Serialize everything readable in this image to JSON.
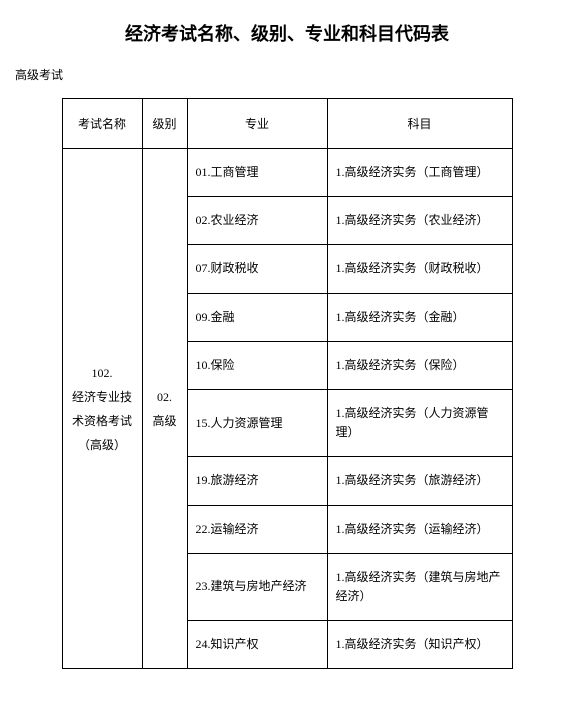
{
  "title": "经济考试名称、级别、专业和科目代码表",
  "subtitle": "高级考试",
  "headers": {
    "exam_name": "考试名称",
    "level": "级别",
    "major": "专业",
    "subject": "科目"
  },
  "exam_name": "102.\n经济专业技术资格考试（高级）",
  "level": "02.\n高级",
  "rows": [
    {
      "major": "01.工商管理",
      "subject": "1.高级经济实务（工商管理）"
    },
    {
      "major": "02.农业经济",
      "subject": "1.高级经济实务（农业经济）"
    },
    {
      "major": "07.财政税收",
      "subject": "1.高级经济实务（财政税收）"
    },
    {
      "major": "09.金融",
      "subject": "1.高级经济实务（金融）"
    },
    {
      "major": "10.保险",
      "subject": "1.高级经济实务（保险）"
    },
    {
      "major": "15.人力资源管理",
      "subject": "1.高级经济实务（人力资源管理）"
    },
    {
      "major": "19.旅游经济",
      "subject": "1.高级经济实务（旅游经济）"
    },
    {
      "major": "22.运输经济",
      "subject": "1.高级经济实务（运输经济）"
    },
    {
      "major": "23.建筑与房地产经济",
      "subject": "1.高级经济实务（建筑与房地产经济）"
    },
    {
      "major": "24.知识产权",
      "subject": "1.高级经济实务（知识产权）"
    }
  ],
  "styling": {
    "font_family": "SimSun",
    "title_fontsize": 18,
    "subtitle_fontsize": 12,
    "table_fontsize": 12,
    "border_color": "#000000",
    "background_color": "#ffffff",
    "text_color": "#000000"
  }
}
